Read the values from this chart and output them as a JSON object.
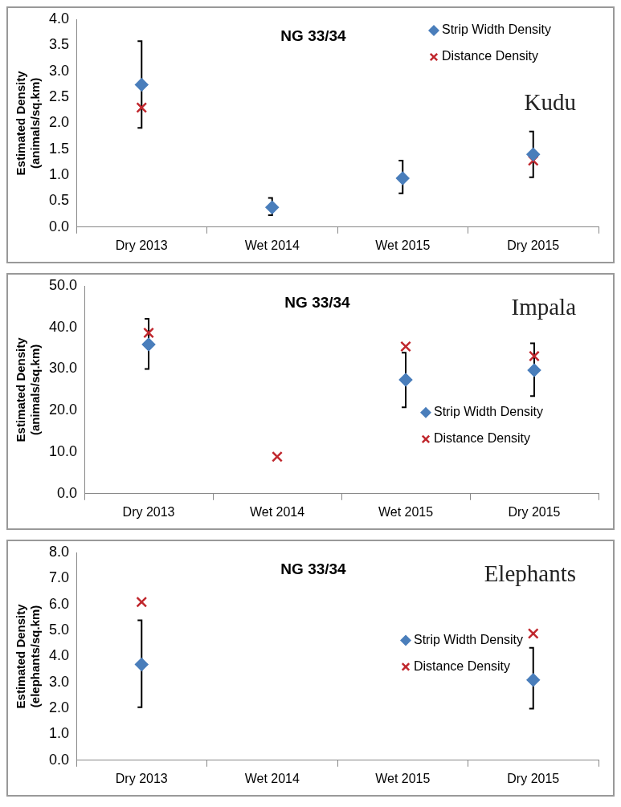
{
  "chart_data": [
    {
      "type": "scatter",
      "title": "NG 33/34",
      "ylabel": "Estimated Density (animals/sq.km)",
      "annotations": [
        "Kudu"
      ],
      "categories": [
        "Dry 2013",
        "Wet 2014",
        "Wet 2015",
        "Dry 2015"
      ],
      "ylim": [
        0,
        4
      ],
      "yticks": [
        {
          "value": 0,
          "label": "0.0"
        },
        {
          "value": 0.5,
          "label": "0.5"
        },
        {
          "value": 1,
          "label": "1.0"
        },
        {
          "value": 1.5,
          "label": "1.5"
        },
        {
          "value": 2,
          "label": "2.0"
        },
        {
          "value": 2.5,
          "label": "2.5"
        },
        {
          "value": 3,
          "label": "3.0"
        },
        {
          "value": 3.5,
          "label": "3.5"
        },
        {
          "value": 4,
          "label": "4.0"
        }
      ],
      "legend": "top right",
      "series": [
        {
          "name": "Strip Width Density",
          "color": "#4a7ebb",
          "marker": "diamond",
          "values": [
            2.74,
            0.38,
            0.94,
            1.4
          ],
          "errors": [
            [
              1.91,
              3.58
            ],
            [
              0.23,
              0.56
            ],
            [
              0.65,
              1.28
            ],
            [
              0.96,
              1.84
            ]
          ]
        },
        {
          "name": "Distance Density",
          "color": "#c0272d",
          "marker": "cross",
          "values": [
            2.3,
            null,
            null,
            1.28
          ]
        }
      ]
    },
    {
      "type": "scatter",
      "title": "NG 33/34",
      "ylabel": "Estimated Density (animals/sq.km)",
      "annotations": [
        "Impala"
      ],
      "categories": [
        "Dry 2013",
        "Wet 2014",
        "Wet 2015",
        "Dry 2015"
      ],
      "ylim": [
        0,
        50
      ],
      "yticks": [
        {
          "value": 0,
          "label": "0.0"
        },
        {
          "value": 10,
          "label": "10.0"
        },
        {
          "value": 20,
          "label": "20.0"
        },
        {
          "value": 30,
          "label": "30.0"
        },
        {
          "value": 40,
          "label": "40.0"
        },
        {
          "value": 50,
          "label": "50.0"
        }
      ],
      "legend": "bottom right",
      "series": [
        {
          "name": "Strip Width Density",
          "color": "#4a7ebb",
          "marker": "diamond",
          "values": [
            35.9,
            null,
            27.4,
            29.7
          ],
          "errors": [
            [
              30.0,
              42.1
            ],
            null,
            [
              20.8,
              33.9
            ],
            [
              23.5,
              36.2
            ]
          ]
        },
        {
          "name": "Distance Density",
          "color": "#c0272d",
          "marker": "cross",
          "values": [
            38.7,
            8.9,
            35.4,
            33.1
          ]
        }
      ]
    },
    {
      "type": "scatter",
      "title": "NG 33/34",
      "ylabel": "Estimated Density (elephants/sq.km)",
      "annotations": [
        "Elephants"
      ],
      "categories": [
        "Dry 2013",
        "Wet 2014",
        "Wet 2015",
        "Dry 2015"
      ],
      "ylim": [
        0,
        8
      ],
      "yticks": [
        {
          "value": 0,
          "label": "0.0"
        },
        {
          "value": 1,
          "label": "1.0"
        },
        {
          "value": 2,
          "label": "2.0"
        },
        {
          "value": 3,
          "label": "3.0"
        },
        {
          "value": 4,
          "label": "4.0"
        },
        {
          "value": 5,
          "label": "5.0"
        },
        {
          "value": 6,
          "label": "6.0"
        },
        {
          "value": 7,
          "label": "7.0"
        },
        {
          "value": 8,
          "label": "8.0"
        }
      ],
      "legend": "right",
      "series": [
        {
          "name": "Strip Width Density",
          "color": "#4a7ebb",
          "marker": "diamond",
          "values": [
            3.69,
            null,
            null,
            3.09
          ],
          "errors": [
            [
              2.04,
              5.39
            ],
            null,
            null,
            [
              1.99,
              4.33
            ]
          ]
        },
        {
          "name": "Distance Density",
          "color": "#c0272d",
          "marker": "cross",
          "values": [
            6.09,
            null,
            null,
            4.88
          ]
        }
      ]
    }
  ]
}
